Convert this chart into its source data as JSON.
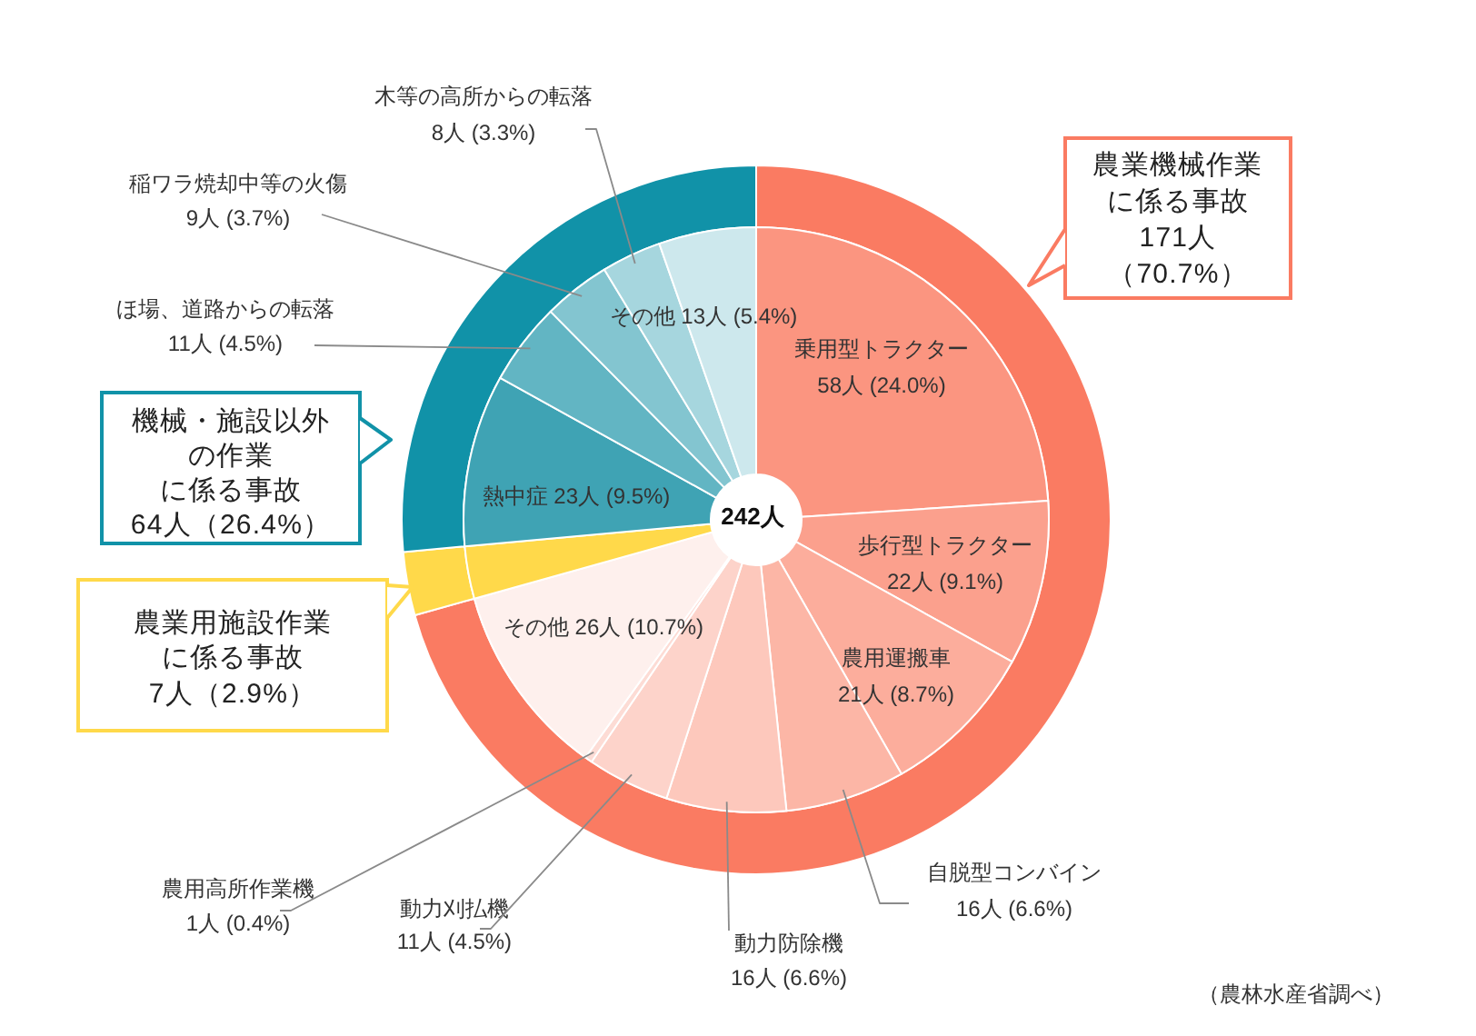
{
  "chart_data": [
    {
      "type": "donut",
      "categories": [
        "農業機械作業に係る事故",
        "農業用施設作業に係る事故",
        "機械・施設以外の作業に係る事故"
      ],
      "values": [
        171,
        7,
        64
      ],
      "colors": [
        "#FA7B62",
        "#FFD94A",
        "#1192A8"
      ],
      "value_labels": [
        "171人（70.7%）",
        "7人（2.9%）",
        "64人（26.4%）"
      ]
    },
    {
      "type": "donut",
      "categories": [
        "乗用型トラクター",
        "歩行型トラクター",
        "農用運搬車",
        "自脱型コンバイン",
        "動力防除機",
        "動力刈払機",
        "農用高所作業機",
        "その他",
        null,
        "熱中症",
        "ほ場、道路からの転落",
        "稲ワラ焼却中等の火傷",
        "木等の高所からの転落",
        "その他"
      ],
      "values": [
        58,
        22,
        21,
        16,
        16,
        11,
        1,
        26,
        7,
        23,
        11,
        9,
        8,
        13
      ],
      "colors": [
        "#FB9580",
        "#FBA08D",
        "#FCAD9C",
        "#FCB6A6",
        "#FDC8BC",
        "#FDD3CA",
        "#FDDCD5",
        "#FEF0ED",
        "#FFD94A",
        "#3FA3B4",
        "#62B5C3",
        "#83C5D0",
        "#A6D6DE",
        "#CDE8ED"
      ],
      "value_labels": [
        "58人 (24.0%)",
        "22人 (9.1%)",
        "21人 (8.7%)",
        "16人 (6.6%)",
        "16人 (6.6%)",
        "11人 (4.5%)",
        "1人 (0.4%)",
        "26人 (10.7%)",
        null,
        "23人 (9.5%)",
        "11人 (4.5%)",
        "9人 (3.7%)",
        "8人 (3.3%)",
        "13人 (5.4%)"
      ],
      "annotations": [
        "242人",
        "（農林水産省調べ）"
      ]
    }
  ]
}
